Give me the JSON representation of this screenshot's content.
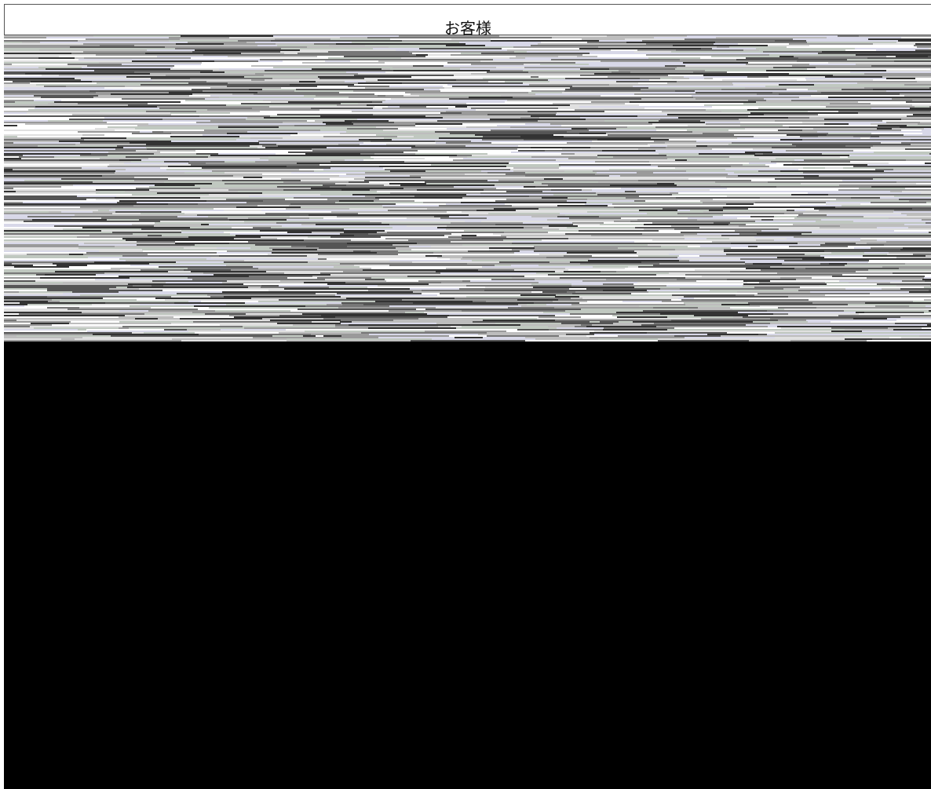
{
  "header": {
    "title": "お客様"
  }
}
